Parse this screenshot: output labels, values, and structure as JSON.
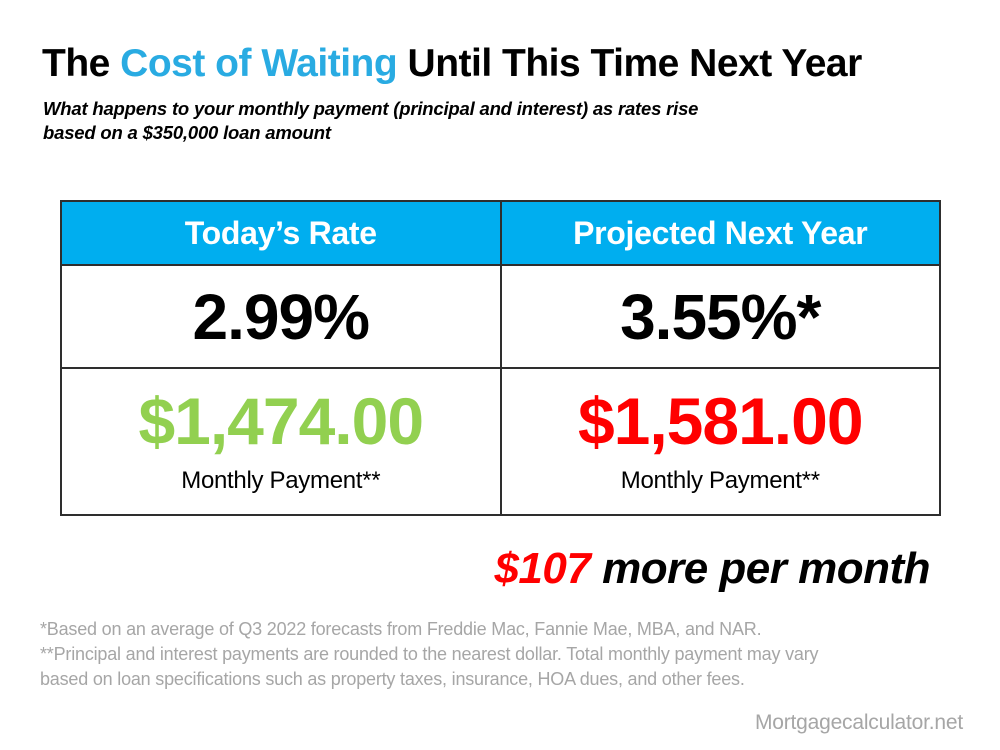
{
  "colors": {
    "title_accent": "#29ABE2",
    "header_bg": "#00AEEF",
    "header_text": "#FFFFFF",
    "payment_today": "#92D050",
    "payment_next_year": "#FF0000",
    "summary_amount": "#FF0000",
    "footnote_gray": "#A6A6A6",
    "table_border": "#2E2E2E",
    "body_text": "#000000"
  },
  "header": {
    "title_prefix": "The ",
    "title_highlight": "Cost of Waiting",
    "title_suffix": " Until This Time Next Year",
    "subtitle_line1": "What happens to your monthly payment (principal and interest) as rates rise",
    "subtitle_line2": "based on a $350,000 loan amount"
  },
  "table": {
    "columns": [
      {
        "header": "Today’s Rate",
        "rate": "2.99%",
        "payment": "$1,474.00",
        "payment_label": "Monthly Payment**"
      },
      {
        "header": "Projected Next Year",
        "rate": "3.55%*",
        "payment": "$1,581.00",
        "payment_label": "Monthly Payment**"
      }
    ]
  },
  "summary": {
    "amount": "$107",
    "rest": " more per month"
  },
  "footnote_lines": [
    "*Based on an average of Q3 2022 forecasts from Freddie Mac, Fannie Mae, MBA, and NAR.",
    "**Principal and interest payments are rounded to the nearest dollar. Total monthly payment may vary",
    "based on loan specifications such as property taxes, insurance, HOA dues, and other fees."
  ],
  "branding": "Mortgagecalculator.net",
  "chart_data": {
    "type": "table",
    "title": "The Cost of Waiting Until This Time Next Year",
    "subtitle": "What happens to your monthly payment (principal and interest) as rates rise based on a $350,000 loan amount",
    "loan_amount": 350000,
    "columns": [
      "Today’s Rate",
      "Projected Next Year"
    ],
    "rows": [
      {
        "label": "Rate",
        "values": [
          "2.99%",
          "3.55%*"
        ],
        "numeric": [
          2.99,
          3.55
        ]
      },
      {
        "label": "Monthly Payment**",
        "values": [
          "$1,474.00",
          "$1,581.00"
        ],
        "numeric": [
          1474.0,
          1581.0
        ]
      }
    ],
    "difference_text": "$107 more per month",
    "monthly_difference": 107
  }
}
